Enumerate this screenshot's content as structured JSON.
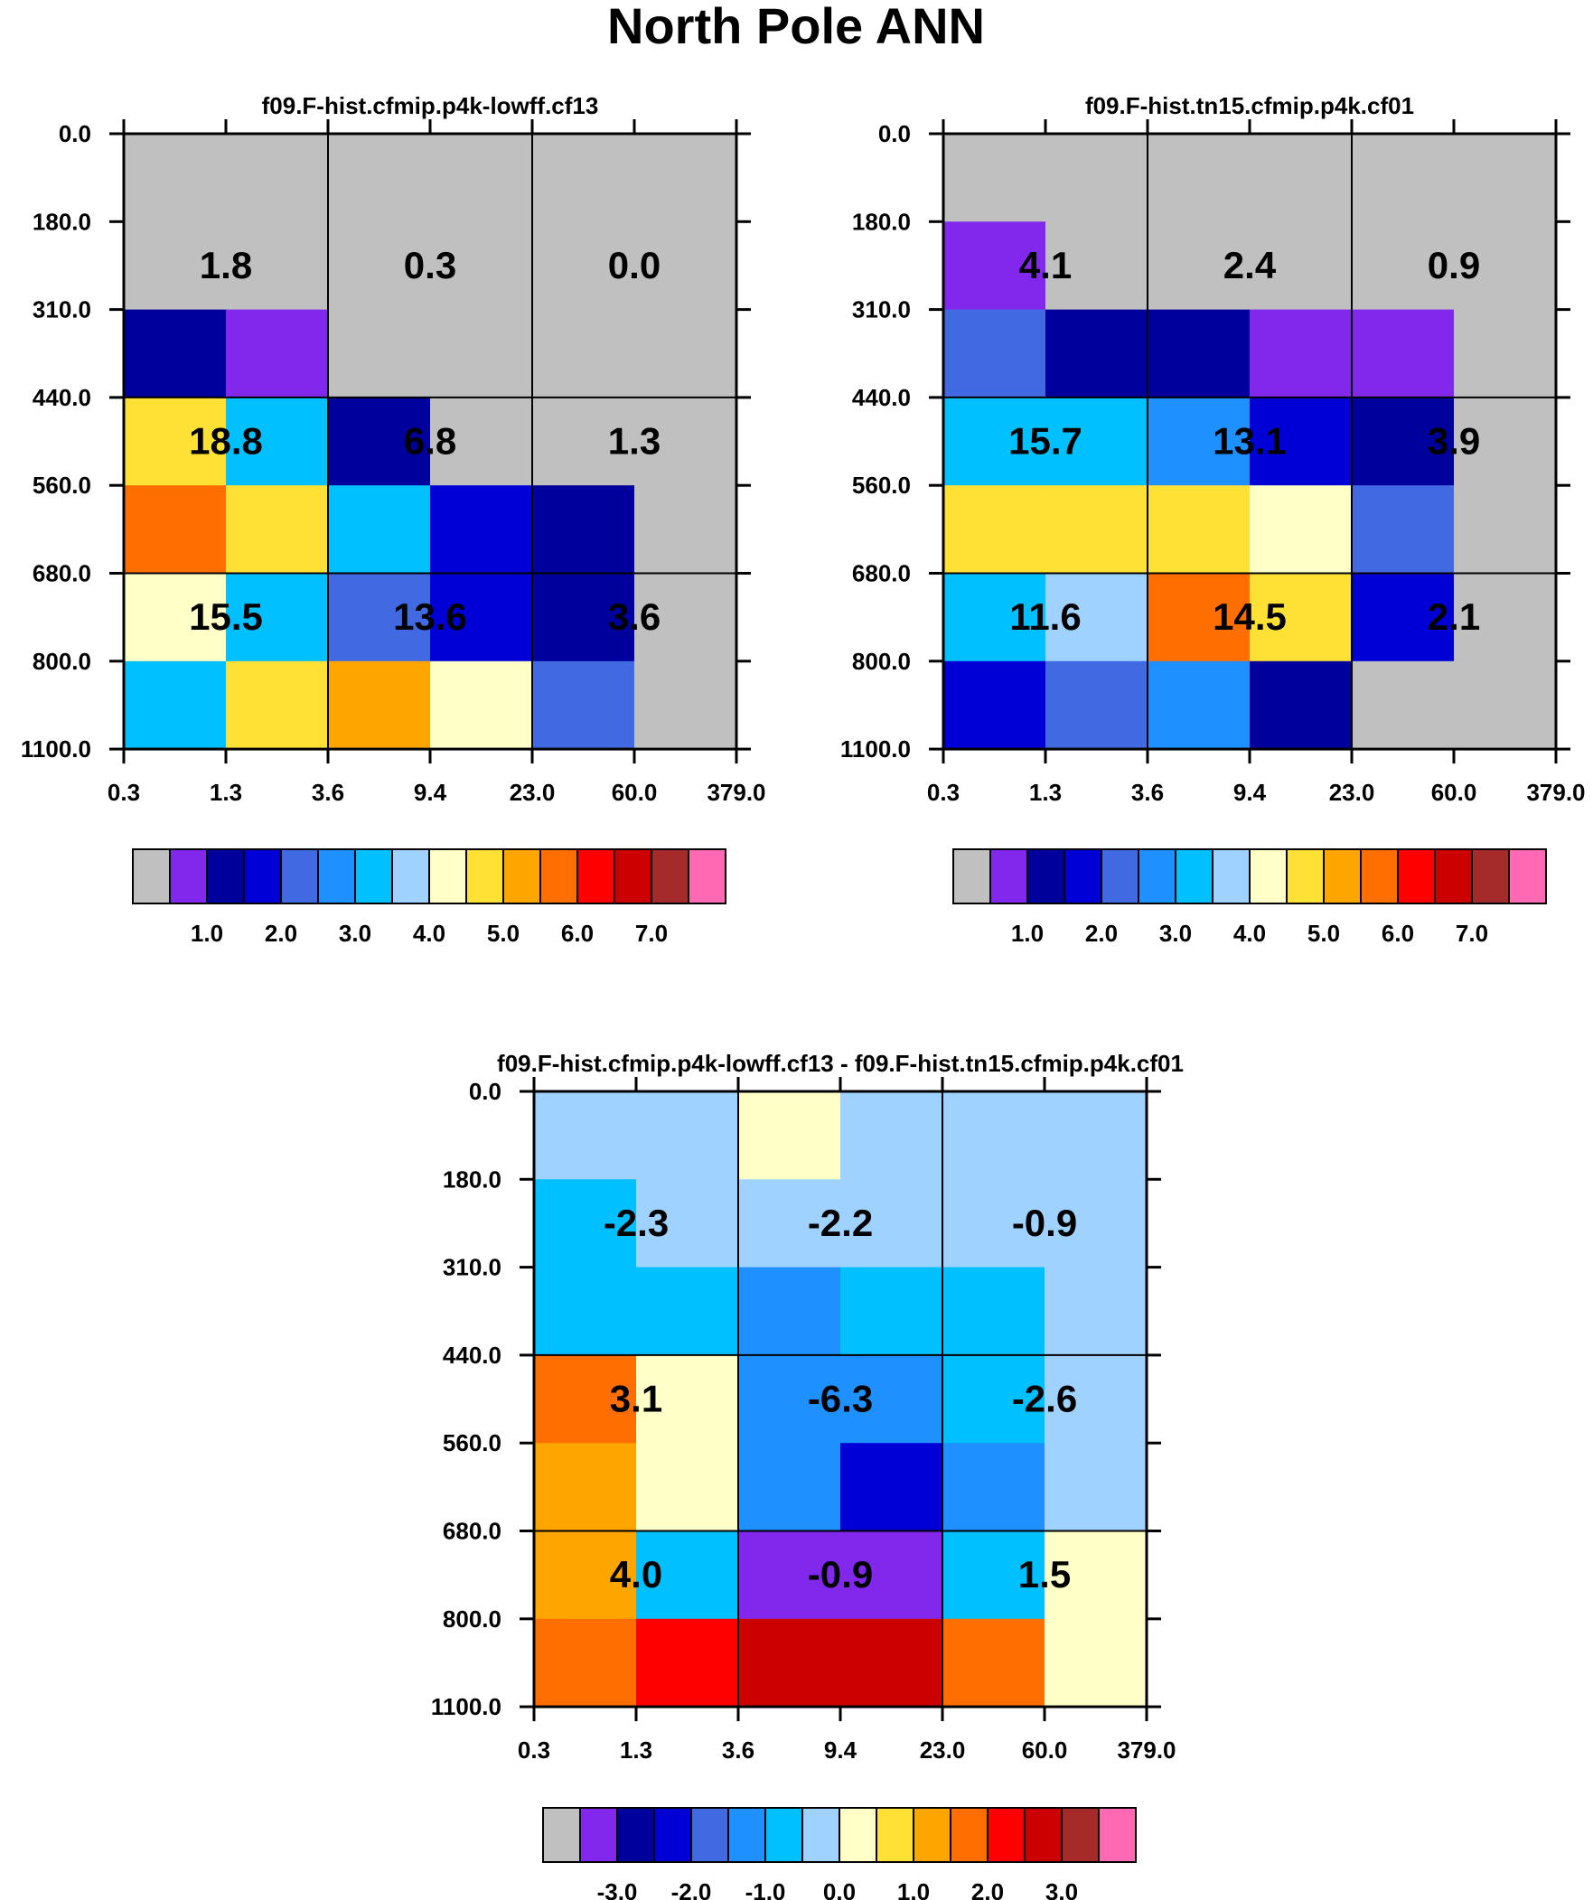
{
  "title": "North Pole ANN",
  "palette": [
    "#c0c0c0",
    "#8128ec",
    "#00009c",
    "#0000d6",
    "#4169e1",
    "#1e90ff",
    "#00c0ff",
    "#a0d2ff",
    "#ffffc8",
    "#ffe135",
    "#ffa500",
    "#ff6e00",
    "#ff0000",
    "#cd0000",
    "#a52a2a",
    "#ff69b4"
  ],
  "chart_data": [
    {
      "type": "heatmap",
      "title": "f09.F-hist.cfmip.p4k-lowff.cf13",
      "xlabel": "",
      "ylabel": "",
      "x_ticks": [
        "0.3",
        "1.3",
        "3.6",
        "9.4",
        "23.0",
        "60.0",
        "379.0"
      ],
      "y_ticks": [
        "0.0",
        "180.0",
        "310.0",
        "440.0",
        "560.0",
        "680.0",
        "800.0",
        "1100.0"
      ],
      "color_index": [
        [
          0,
          0,
          0,
          0,
          0,
          0
        ],
        [
          0,
          0,
          0,
          0,
          0,
          0
        ],
        [
          2,
          1,
          0,
          0,
          0,
          0
        ],
        [
          9,
          6,
          2,
          0,
          0,
          0
        ],
        [
          11,
          9,
          6,
          3,
          2,
          0
        ],
        [
          8,
          6,
          4,
          3,
          2,
          0
        ],
        [
          6,
          9,
          10,
          8,
          4,
          0
        ]
      ],
      "box_values": [
        [
          "1.8",
          "0.3",
          "0.0"
        ],
        [
          "18.8",
          "6.8",
          "1.3"
        ],
        [
          "15.5",
          "13.6",
          "3.6"
        ]
      ],
      "colorbar_labels": [
        "1.0",
        "2.0",
        "3.0",
        "4.0",
        "5.0",
        "6.0",
        "7.0"
      ]
    },
    {
      "type": "heatmap",
      "title": "f09.F-hist.tn15.cfmip.p4k.cf01",
      "xlabel": "",
      "ylabel": "",
      "x_ticks": [
        "0.3",
        "1.3",
        "3.6",
        "9.4",
        "23.0",
        "60.0",
        "379.0"
      ],
      "y_ticks": [
        "0.0",
        "180.0",
        "310.0",
        "440.0",
        "560.0",
        "680.0",
        "800.0",
        "1100.0"
      ],
      "color_index": [
        [
          0,
          0,
          0,
          0,
          0,
          0
        ],
        [
          1,
          0,
          0,
          0,
          0,
          0
        ],
        [
          4,
          2,
          2,
          1,
          1,
          0
        ],
        [
          6,
          6,
          5,
          3,
          2,
          0
        ],
        [
          9,
          9,
          9,
          8,
          4,
          0
        ],
        [
          6,
          7,
          11,
          9,
          3,
          0
        ],
        [
          3,
          4,
          5,
          2,
          0,
          0
        ]
      ],
      "box_values": [
        [
          "4.1",
          "2.4",
          "0.9"
        ],
        [
          "15.7",
          "13.1",
          "3.9"
        ],
        [
          "11.6",
          "14.5",
          "2.1"
        ]
      ],
      "colorbar_labels": [
        "1.0",
        "2.0",
        "3.0",
        "4.0",
        "5.0",
        "6.0",
        "7.0"
      ]
    },
    {
      "type": "heatmap",
      "title": "f09.F-hist.cfmip.p4k-lowff.cf13 - f09.F-hist.tn15.cfmip.p4k.cf01",
      "xlabel": "",
      "ylabel": "",
      "x_ticks": [
        "0.3",
        "1.3",
        "3.6",
        "9.4",
        "23.0",
        "60.0",
        "379.0"
      ],
      "y_ticks": [
        "0.0",
        "180.0",
        "310.0",
        "440.0",
        "560.0",
        "680.0",
        "800.0",
        "1100.0"
      ],
      "color_index": [
        [
          7,
          7,
          8,
          7,
          7,
          7
        ],
        [
          6,
          7,
          7,
          7,
          7,
          7
        ],
        [
          6,
          6,
          5,
          6,
          6,
          7
        ],
        [
          11,
          8,
          5,
          5,
          6,
          7
        ],
        [
          10,
          8,
          5,
          3,
          5,
          7
        ],
        [
          10,
          6,
          1,
          1,
          6,
          8
        ],
        [
          11,
          12,
          13,
          13,
          11,
          8
        ]
      ],
      "box_values": [
        [
          "-2.3",
          "-2.2",
          "-0.9"
        ],
        [
          "3.1",
          "-6.3",
          "-2.6"
        ],
        [
          "4.0",
          "-0.9",
          "1.5"
        ]
      ],
      "colorbar_labels": [
        "-3.0",
        "-2.0",
        "-1.0",
        "0.0",
        "1.0",
        "2.0",
        "3.0"
      ]
    }
  ]
}
